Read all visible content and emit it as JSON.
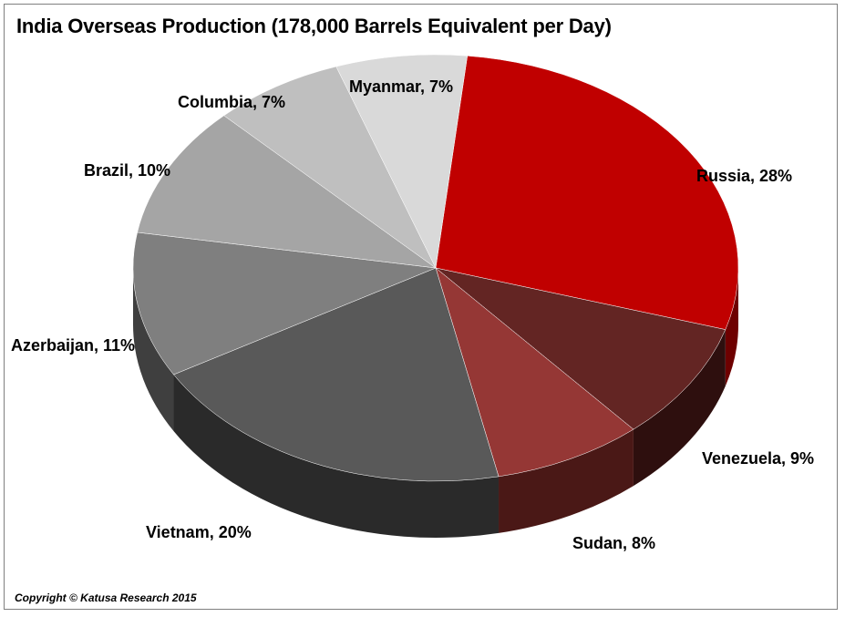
{
  "chart_data": {
    "type": "pie",
    "title": "India Overseas Production (178,000 Barrels Equivalent per Day)",
    "unit": "%",
    "slices": [
      {
        "name": "Russia",
        "value": 28,
        "label": "Russia, 28%",
        "color": "#c00000",
        "side_color": "#6e0000"
      },
      {
        "name": "Venezuela",
        "value": 9,
        "label": "Venezuela, 9%",
        "color": "#632523",
        "side_color": "#2e0f0e"
      },
      {
        "name": "Sudan",
        "value": 8,
        "label": "Sudan, 8%",
        "color": "#953735",
        "side_color": "#4a1816"
      },
      {
        "name": "Vietnam",
        "value": 20,
        "label": "Vietnam, 20%",
        "color": "#595959",
        "side_color": "#2a2a2a"
      },
      {
        "name": "Azerbaijan",
        "value": 11,
        "label": "Azerbaijan, 11%",
        "color": "#7f7f7f",
        "side_color": "#3f3f3f"
      },
      {
        "name": "Brazil",
        "value": 10,
        "label": "Brazil, 10%",
        "color": "#a5a5a5",
        "side_color": "#555555"
      },
      {
        "name": "Columbia",
        "value": 7,
        "label": "Columbia, 7%",
        "color": "#bfbfbf",
        "side_color": "#666666"
      },
      {
        "name": "Myanmar",
        "value": 7,
        "label": "Myanmar, 7%",
        "color": "#d9d9d9",
        "side_color": "#777777"
      }
    ]
  },
  "footer": {
    "copyright": "Copyright © Katusa Research 2015"
  }
}
